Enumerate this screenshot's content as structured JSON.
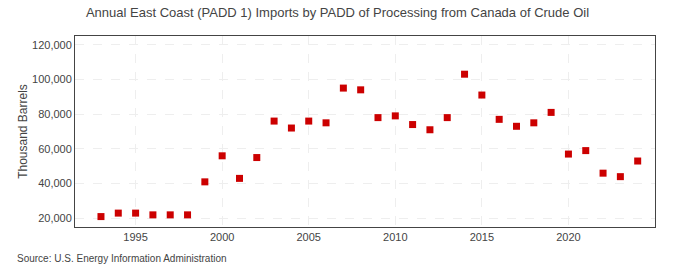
{
  "chart_data": {
    "type": "scatter",
    "title": "Annual East Coast (PADD 1) Imports by PADD of Processing from Canada of Crude Oil",
    "ylabel": "Thousand Barrels",
    "annotations": [
      "Source: U.S. Energy Information Administration"
    ],
    "x": [
      1993,
      1994,
      1995,
      1996,
      1997,
      1998,
      1999,
      2000,
      2001,
      2002,
      2003,
      2004,
      2005,
      2006,
      2007,
      2008,
      2009,
      2010,
      2011,
      2012,
      2013,
      2014,
      2015,
      2016,
      2017,
      2018,
      2019,
      2020,
      2021,
      2022,
      2023,
      2024
    ],
    "values": [
      21000,
      23000,
      23000,
      22000,
      22000,
      22000,
      41000,
      56000,
      43000,
      55000,
      76000,
      72000,
      76000,
      75000,
      95000,
      94000,
      78000,
      79000,
      74000,
      71000,
      78000,
      103000,
      91000,
      77000,
      73000,
      75000,
      81000,
      57000,
      59000,
      46000,
      44000,
      53000
    ],
    "color": "#cc0000",
    "marker": "square",
    "xlim": [
      1991.5,
      2025
    ],
    "xticks": [
      1995,
      2000,
      2005,
      2010,
      2015,
      2020
    ],
    "ylim": [
      15000,
      125000
    ],
    "yticks": [
      {
        "value": 20000,
        "label": "20,000"
      },
      {
        "value": 40000,
        "label": "40,000"
      },
      {
        "value": 60000,
        "label": "60,000"
      },
      {
        "value": 80000,
        "label": "80,000"
      },
      {
        "value": 100000,
        "label": "100,000"
      },
      {
        "value": 120000,
        "label": "120,000"
      }
    ],
    "grid": true
  }
}
